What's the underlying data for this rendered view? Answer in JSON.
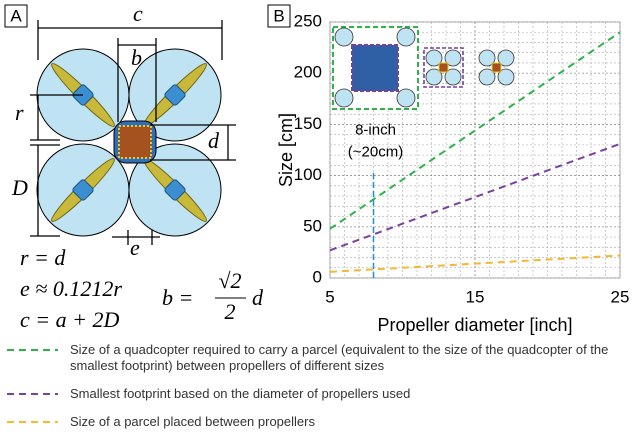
{
  "panel_a": {
    "label": "A",
    "dims": {
      "c": "c",
      "b": "b",
      "r": "r",
      "d": "d",
      "D": "D",
      "e": "e"
    },
    "equations": [
      "r = d",
      "e ≈ 0.1212r",
      "c = a + 2D"
    ],
    "fraction_equation": {
      "lhs": "b =",
      "numerator": "√2",
      "denominator": "2",
      "rhs": "d"
    }
  },
  "chart_data": {
    "type": "line",
    "panel_label": "B",
    "x_label": "Propeller diameter [inch]",
    "y_label": "Size [cm]",
    "x": [
      5,
      10,
      15,
      20,
      25
    ],
    "series": [
      {
        "name": "Size of a quadcopter required to carry a parcel (equivalent to the size of the quadcopter of the smallest footprint) between propellers of different sizes",
        "color": "#2db34a",
        "values": [
          48,
          96,
          144,
          192,
          240
        ]
      },
      {
        "name": "Smallest footprint based on the diameter of propellers used",
        "color": "#7b3fa0",
        "values": [
          27,
          53,
          79,
          105,
          131
        ]
      },
      {
        "name": "Size of a parcel placed between propellers",
        "color": "#f5b82e",
        "values": [
          6,
          10,
          14,
          18,
          22
        ]
      }
    ],
    "xlim": [
      5,
      25
    ],
    "xticks": [
      5,
      15,
      25
    ],
    "ylim": [
      0,
      250
    ],
    "yticks": [
      0,
      50,
      100,
      150,
      200,
      250
    ],
    "grid": true,
    "minor_grid": {
      "x": 1,
      "y": 10
    },
    "reference_line": {
      "x": 8,
      "top": 105,
      "color": "#1f8fd6"
    },
    "annotation": [
      "8-inch",
      "(~20cm)"
    ]
  }
}
